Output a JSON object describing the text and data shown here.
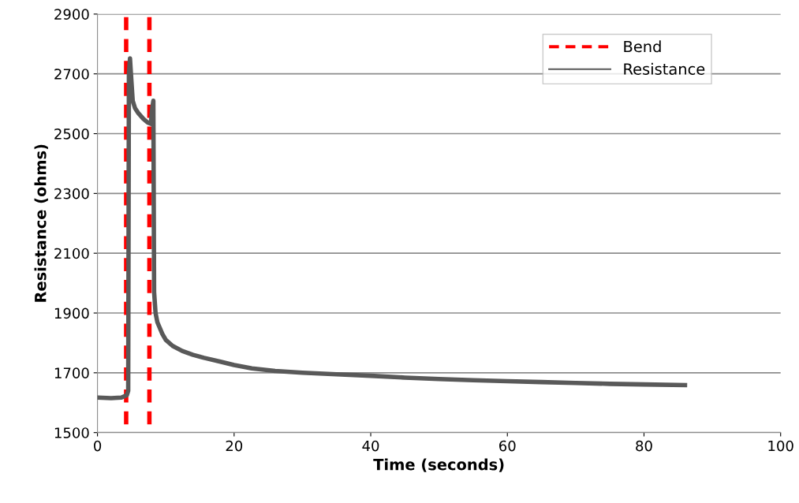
{
  "chart_data": {
    "type": "line",
    "xlabel": "Time (seconds)",
    "ylabel": "Resistance (ohms)",
    "xlim": [
      0,
      100
    ],
    "xticks": [
      0,
      20,
      40,
      60,
      80,
      100
    ],
    "ylim": [
      1500,
      2900
    ],
    "yticks": [
      1500,
      1700,
      1900,
      2100,
      2300,
      2500,
      2700,
      2900
    ],
    "grid": "y",
    "legend": "top right",
    "marker": "none",
    "line_style": "solid",
    "series": [
      {
        "name": "Bend",
        "color": "#ff0000",
        "line_style": "dashed",
        "x": [
          4.2,
          4.2,
          null,
          7.6,
          7.6
        ],
        "values": [
          2890,
          1500,
          null,
          2890,
          1500
        ]
      },
      {
        "name": "Resistance",
        "color": "#595959",
        "x": [
          0,
          2,
          3.5,
          4.3,
          4.5,
          4.6,
          4.76,
          4.9,
          5.16,
          5.5,
          5.97,
          6.7,
          7.36,
          7.8,
          8.05,
          8.18,
          8.25,
          8.29,
          8.5,
          8.77,
          9.5,
          10,
          11,
          12.4,
          14,
          15.6,
          18,
          20,
          22.6,
          26,
          30,
          35,
          40,
          45,
          50,
          55,
          60,
          65,
          70,
          75,
          80,
          86
        ],
        "values": [
          1617,
          1615,
          1617,
          1625,
          1640,
          2700,
          2752,
          2700,
          2610,
          2585,
          2569,
          2550,
          2537,
          2533,
          2590,
          2610,
          2200,
          1970,
          1900,
          1869,
          1830,
          1810,
          1790,
          1773,
          1760,
          1750,
          1737,
          1726,
          1715,
          1706,
          1700,
          1695,
          1690,
          1684,
          1679,
          1675,
          1672,
          1669,
          1666,
          1663,
          1661,
          1659
        ]
      }
    ]
  }
}
